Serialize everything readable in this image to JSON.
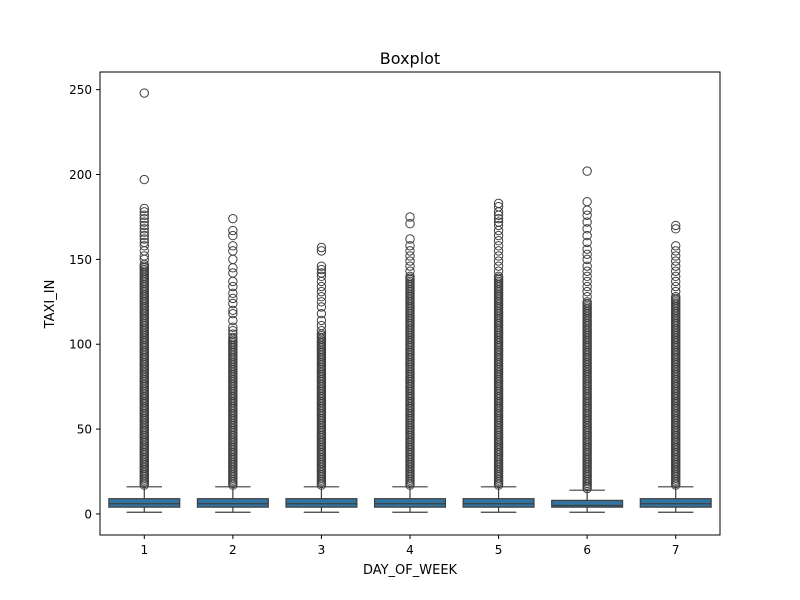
{
  "chart_data": {
    "type": "box",
    "title": "Boxplot",
    "xlabel": "DAY_OF_WEEK",
    "ylabel": "TAXI_IN",
    "ylim": [
      -12.4,
      260.4
    ],
    "yticks": [
      0,
      50,
      100,
      150,
      200,
      250
    ],
    "grid": false,
    "box_color": "#3274a1",
    "line_color": "#3f3f3f",
    "categories": [
      "1",
      "2",
      "3",
      "4",
      "5",
      "6",
      "7"
    ],
    "boxes": [
      {
        "category": "1",
        "whisker_low": 1,
        "q1": 4,
        "median": 6,
        "q3": 9,
        "whisker_high": 16,
        "dense_outliers_to": 147,
        "outliers": [
          150,
          152,
          155,
          158,
          160,
          162,
          164,
          166,
          168,
          170,
          172,
          174,
          176,
          178,
          180,
          197,
          248
        ]
      },
      {
        "category": "2",
        "whisker_low": 1,
        "q1": 4,
        "median": 6,
        "q3": 9,
        "whisker_high": 16,
        "dense_outliers_to": 104,
        "outliers": [
          106,
          108,
          110,
          114,
          118,
          120,
          124,
          127,
          130,
          134,
          137,
          142,
          145,
          150,
          155,
          158,
          164,
          167,
          174
        ]
      },
      {
        "category": "3",
        "whisker_low": 1,
        "q1": 4,
        "median": 6,
        "q3": 9,
        "whisker_high": 16,
        "dense_outliers_to": 106,
        "outliers": [
          108,
          111,
          114,
          118,
          122,
          125,
          128,
          131,
          134,
          137,
          140,
          142,
          144,
          146,
          155,
          157
        ]
      },
      {
        "category": "4",
        "whisker_low": 1,
        "q1": 4,
        "median": 6,
        "q3": 9,
        "whisker_high": 16,
        "dense_outliers_to": 140,
        "outliers": [
          143,
          146,
          149,
          152,
          155,
          158,
          162,
          171,
          175
        ]
      },
      {
        "category": "5",
        "whisker_low": 1,
        "q1": 4,
        "median": 6,
        "q3": 9,
        "whisker_high": 16,
        "dense_outliers_to": 140,
        "outliers": [
          143,
          146,
          149,
          152,
          155,
          158,
          161,
          164,
          167,
          170,
          172,
          174,
          176,
          178,
          181,
          183
        ]
      },
      {
        "category": "6",
        "whisker_low": 1,
        "q1": 4,
        "median": 5,
        "q3": 8,
        "whisker_high": 14,
        "dense_outliers_to": 125,
        "outliers": [
          128,
          131,
          134,
          137,
          140,
          143,
          146,
          150,
          153,
          156,
          160,
          164,
          168,
          172,
          176,
          179,
          184,
          202
        ]
      },
      {
        "category": "7",
        "whisker_low": 1,
        "q1": 4,
        "median": 6,
        "q3": 9,
        "whisker_high": 16,
        "dense_outliers_to": 128,
        "outliers": [
          131,
          134,
          137,
          140,
          143,
          146,
          149,
          152,
          155,
          158,
          168,
          170
        ]
      }
    ]
  }
}
